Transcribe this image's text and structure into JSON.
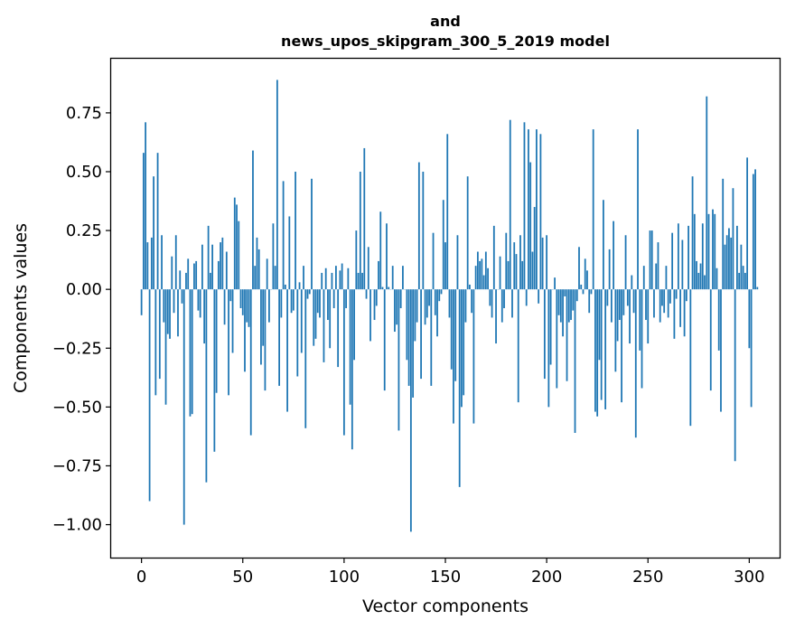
{
  "chart_data": {
    "type": "bar",
    "title_lines": [
      "and",
      "news_upos_skipgram_300_5_2019 model"
    ],
    "xlabel": "Vector components",
    "ylabel": "Components values",
    "xlim": [
      -15,
      315
    ],
    "ylim": [
      -1.14,
      0.98
    ],
    "xticks": [
      0,
      50,
      100,
      150,
      200,
      250,
      300
    ],
    "yticks": [
      0.75,
      0.5,
      0.25,
      0.0,
      -0.25,
      -0.5,
      -0.75,
      -1.0
    ],
    "ytick_labels": [
      "0.75",
      "0.50",
      "0.25",
      "0.00",
      "−0.25",
      "−0.50",
      "−0.75",
      "−1.00"
    ],
    "bar_color": "#1f77b4",
    "grid": false,
    "values": [
      -0.11,
      0.58,
      0.71,
      0.2,
      -0.9,
      0.22,
      0.48,
      -0.45,
      0.58,
      -0.38,
      0.23,
      -0.14,
      -0.49,
      -0.19,
      -0.21,
      0.14,
      -0.1,
      0.23,
      -0.2,
      0.08,
      -0.06,
      -1.0,
      0.07,
      0.13,
      -0.54,
      -0.53,
      0.11,
      0.12,
      -0.09,
      -0.12,
      0.19,
      -0.23,
      -0.82,
      0.27,
      0.07,
      0.19,
      -0.69,
      -0.44,
      0.12,
      0.2,
      0.22,
      -0.15,
      0.16,
      -0.45,
      -0.05,
      -0.27,
      0.39,
      0.36,
      0.29,
      -0.08,
      -0.11,
      -0.35,
      -0.14,
      -0.16,
      -0.62,
      0.59,
      0.1,
      0.22,
      0.17,
      -0.32,
      -0.24,
      -0.43,
      0.13,
      -0.14,
      0.0,
      0.28,
      0.1,
      0.89,
      -0.41,
      -0.12,
      0.46,
      0.02,
      -0.52,
      0.31,
      -0.1,
      -0.09,
      0.5,
      -0.37,
      0.03,
      -0.27,
      0.1,
      -0.59,
      -0.04,
      -0.02,
      0.47,
      -0.24,
      -0.21,
      -0.1,
      -0.12,
      0.07,
      -0.31,
      0.09,
      -0.13,
      -0.25,
      0.07,
      -0.08,
      0.1,
      -0.33,
      0.08,
      0.11,
      -0.62,
      -0.08,
      0.09,
      -0.49,
      -0.68,
      -0.3,
      0.25,
      0.07,
      0.5,
      0.07,
      0.6,
      -0.04,
      0.18,
      -0.22,
      0.0,
      -0.13,
      -0.07,
      0.12,
      0.33,
      0.01,
      -0.43,
      0.28,
      0.01,
      0.0,
      0.1,
      -0.18,
      -0.15,
      -0.6,
      -0.08,
      0.1,
      0.0,
      -0.3,
      -0.41,
      -1.03,
      -0.46,
      -0.22,
      -0.14,
      0.54,
      -0.38,
      0.5,
      -0.15,
      -0.12,
      -0.07,
      -0.41,
      0.24,
      -0.11,
      -0.2,
      -0.05,
      -0.02,
      0.38,
      0.2,
      0.66,
      -0.12,
      -0.34,
      -0.57,
      -0.39,
      0.23,
      -0.84,
      -0.5,
      -0.45,
      -0.14,
      0.48,
      0.02,
      -0.1,
      -0.57,
      0.1,
      0.16,
      0.12,
      0.13,
      0.06,
      0.16,
      0.09,
      -0.07,
      -0.12,
      0.27,
      -0.23,
      0.0,
      0.14,
      -0.14,
      -0.08,
      0.24,
      0.12,
      0.72,
      -0.12,
      0.2,
      0.15,
      -0.48,
      0.23,
      0.12,
      0.71,
      -0.07,
      0.68,
      0.54,
      0.16,
      0.35,
      0.68,
      -0.06,
      0.66,
      0.22,
      -0.38,
      0.23,
      -0.5,
      -0.32,
      0.0,
      0.05,
      -0.42,
      -0.11,
      -0.14,
      -0.2,
      -0.03,
      -0.39,
      -0.14,
      -0.13,
      -0.09,
      -0.61,
      -0.05,
      0.18,
      0.02,
      -0.02,
      0.13,
      0.08,
      -0.1,
      -0.02,
      0.68,
      -0.52,
      -0.54,
      -0.3,
      -0.47,
      0.38,
      -0.51,
      -0.07,
      0.17,
      -0.14,
      0.29,
      -0.35,
      -0.22,
      -0.13,
      -0.48,
      -0.11,
      0.23,
      -0.07,
      -0.23,
      0.06,
      -0.1,
      -0.63,
      0.68,
      -0.26,
      -0.42,
      0.1,
      -0.13,
      -0.23,
      0.25,
      0.25,
      -0.12,
      0.11,
      0.2,
      -0.14,
      -0.07,
      -0.1,
      0.1,
      -0.12,
      -0.06,
      0.24,
      -0.21,
      -0.04,
      0.28,
      -0.16,
      0.21,
      -0.2,
      -0.05,
      0.27,
      -0.58,
      0.48,
      0.32,
      0.12,
      0.07,
      0.11,
      0.28,
      0.06,
      0.82,
      0.32,
      -0.43,
      0.34,
      0.32,
      0.09,
      -0.26,
      -0.52,
      0.47,
      0.19,
      0.23,
      0.26,
      0.22,
      0.43,
      -0.73,
      0.27,
      0.07,
      0.19,
      0.1,
      0.07,
      0.56,
      -0.25,
      -0.5,
      0.49,
      0.51,
      0.01
    ]
  }
}
